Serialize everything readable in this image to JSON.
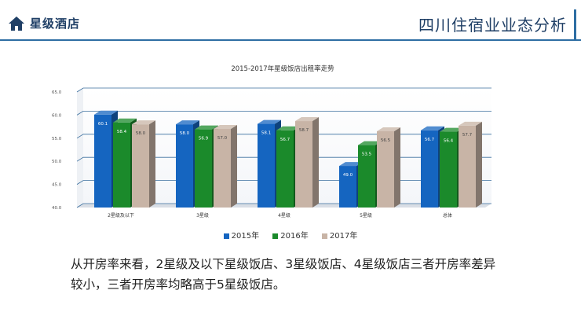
{
  "header": {
    "section_title": "星级酒店",
    "page_title": "四川住宿业业态分析",
    "home_icon": "home-icon"
  },
  "body_text": {
    "line1": "从开房率来看，2星级及以下星级饭店、3星级饭店、4星级饭店三者开房率差异",
    "line2": "较小，三者开房率均略高于5星级饭店。"
  },
  "chart_data": {
    "type": "bar",
    "title": "2015-2017年星级饭店出租率走势",
    "categories": [
      "2星级及以下",
      "3星级",
      "4星级",
      "5星级",
      "总体"
    ],
    "series": [
      {
        "name": "2015年",
        "color": "#1565c0",
        "values": [
          60.1,
          58.0,
          58.1,
          49.0,
          56.7
        ]
      },
      {
        "name": "2016年",
        "color": "#1b8a2b",
        "values": [
          58.4,
          56.9,
          56.7,
          53.5,
          56.4
        ]
      },
      {
        "name": "2017年",
        "color": "#c8b4a6",
        "values": [
          58.0,
          57.0,
          58.7,
          56.5,
          57.7
        ]
      }
    ],
    "yticks": [
      "40.0",
      "45.0",
      "50.0",
      "55.0",
      "60.0",
      "65.0"
    ],
    "ylim": [
      40,
      65
    ],
    "grid": true,
    "legend": "bottom",
    "style": "3d-column"
  }
}
